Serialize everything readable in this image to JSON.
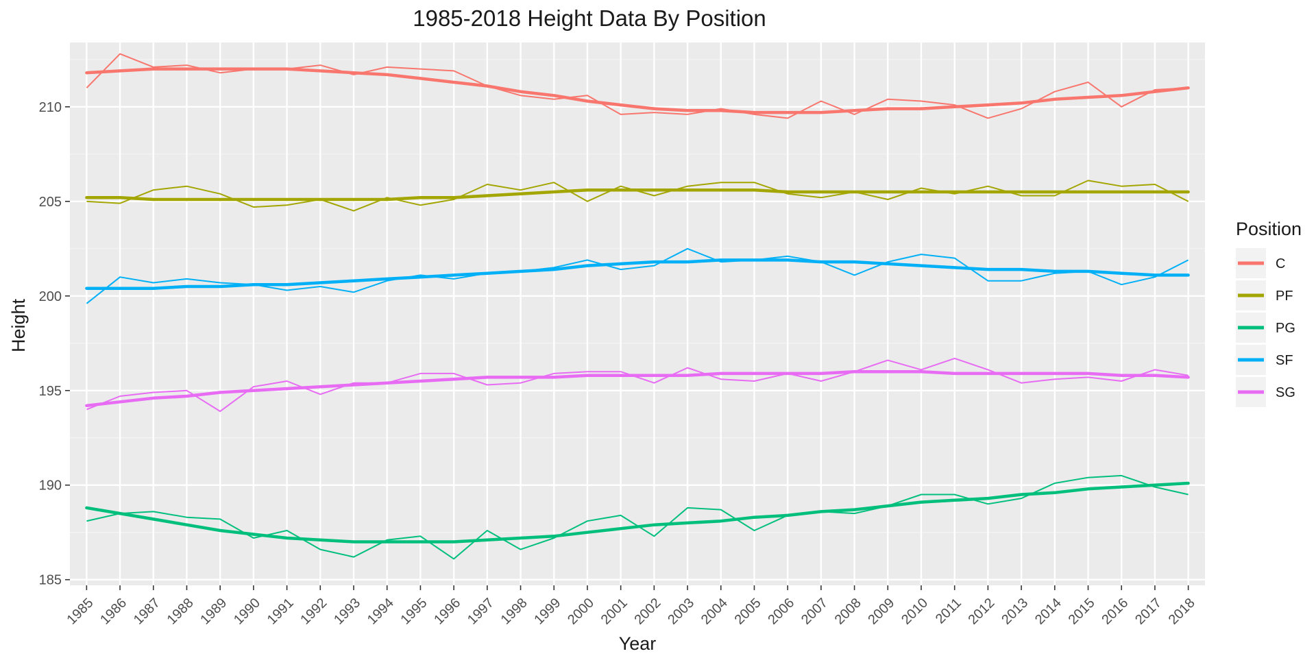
{
  "chart_data": {
    "type": "line",
    "title": "1985-2018 Height Data By Position",
    "xlabel": "Year",
    "ylabel": "Height",
    "xlim": [
      1984.5,
      2018.5
    ],
    "ylim": [
      184.7,
      213.4
    ],
    "x": [
      1985,
      1986,
      1987,
      1988,
      1989,
      1990,
      1991,
      1992,
      1993,
      1994,
      1995,
      1996,
      1997,
      1998,
      1999,
      2000,
      2001,
      2002,
      2003,
      2004,
      2005,
      2006,
      2007,
      2008,
      2009,
      2010,
      2011,
      2012,
      2013,
      2014,
      2015,
      2016,
      2017,
      2018
    ],
    "x_tick_labels": [
      "1985",
      "1986",
      "1987",
      "1988",
      "1989",
      "1990",
      "1991",
      "1992",
      "1993",
      "1994",
      "1995",
      "1996",
      "1997",
      "1998",
      "1999",
      "2000",
      "2001",
      "2002",
      "2003",
      "2004",
      "2005",
      "2006",
      "2007",
      "2008",
      "2009",
      "2010",
      "2011",
      "2012",
      "2013",
      "2014",
      "2015",
      "2016",
      "2017",
      "2018"
    ],
    "y_ticks": [
      185,
      190,
      195,
      200,
      205,
      210
    ],
    "y_tick_labels": [
      "185",
      "190",
      "195",
      "200",
      "205",
      "210"
    ],
    "grid": true,
    "legend": {
      "title": "Position",
      "placement": "right"
    },
    "series": [
      {
        "name": "C",
        "color": "#F8766D",
        "values": [
          211.0,
          212.8,
          212.1,
          212.2,
          211.8,
          212.0,
          212.0,
          212.2,
          211.7,
          212.1,
          212.0,
          211.9,
          211.1,
          210.6,
          210.4,
          210.6,
          209.6,
          209.7,
          209.6,
          209.9,
          209.6,
          209.4,
          210.3,
          209.6,
          210.4,
          210.3,
          210.1,
          209.4,
          209.9,
          210.8,
          211.3,
          210.0,
          210.9,
          211.0
        ],
        "trend": [
          211.8,
          211.9,
          212.0,
          212.0,
          212.0,
          212.0,
          212.0,
          211.9,
          211.8,
          211.7,
          211.5,
          211.3,
          211.1,
          210.8,
          210.6,
          210.3,
          210.1,
          209.9,
          209.8,
          209.8,
          209.7,
          209.7,
          209.7,
          209.8,
          209.9,
          209.9,
          210.0,
          210.1,
          210.2,
          210.4,
          210.5,
          210.6,
          210.8,
          211.0
        ]
      },
      {
        "name": "PF",
        "color": "#A3A500",
        "values": [
          205.0,
          204.9,
          205.6,
          205.8,
          205.4,
          204.7,
          204.8,
          205.1,
          204.5,
          205.2,
          204.8,
          205.1,
          205.9,
          205.6,
          206.0,
          205.0,
          205.8,
          205.3,
          205.8,
          206.0,
          206.0,
          205.4,
          205.2,
          205.5,
          205.1,
          205.7,
          205.4,
          205.8,
          205.3,
          205.3,
          206.1,
          205.8,
          205.9,
          205.0
        ],
        "trend": [
          205.2,
          205.2,
          205.1,
          205.1,
          205.1,
          205.1,
          205.1,
          205.1,
          205.1,
          205.1,
          205.2,
          205.2,
          205.3,
          205.4,
          205.5,
          205.6,
          205.6,
          205.6,
          205.6,
          205.6,
          205.6,
          205.5,
          205.5,
          205.5,
          205.5,
          205.5,
          205.5,
          205.5,
          205.5,
          205.5,
          205.5,
          205.5,
          205.5,
          205.5
        ]
      },
      {
        "name": "PG",
        "color": "#00BF7D",
        "values": [
          188.1,
          188.5,
          188.6,
          188.3,
          188.2,
          187.2,
          187.6,
          186.6,
          186.2,
          187.1,
          187.3,
          186.1,
          187.6,
          186.6,
          187.2,
          188.1,
          188.4,
          187.3,
          188.8,
          188.7,
          187.6,
          188.4,
          188.6,
          188.5,
          188.9,
          189.5,
          189.5,
          189.0,
          189.3,
          190.1,
          190.4,
          190.5,
          189.9,
          189.5
        ],
        "trend": [
          188.8,
          188.5,
          188.2,
          187.9,
          187.6,
          187.4,
          187.2,
          187.1,
          187.0,
          187.0,
          187.0,
          187.0,
          187.1,
          187.2,
          187.3,
          187.5,
          187.7,
          187.9,
          188.0,
          188.1,
          188.3,
          188.4,
          188.6,
          188.7,
          188.9,
          189.1,
          189.2,
          189.3,
          189.5,
          189.6,
          189.8,
          189.9,
          190.0,
          190.1
        ]
      },
      {
        "name": "SF",
        "color": "#00B0F6",
        "values": [
          199.6,
          201.0,
          200.7,
          200.9,
          200.7,
          200.6,
          200.3,
          200.5,
          200.2,
          200.8,
          201.1,
          200.9,
          201.2,
          201.3,
          201.5,
          201.9,
          201.4,
          201.6,
          202.5,
          201.8,
          201.9,
          202.1,
          201.8,
          201.1,
          201.8,
          202.2,
          202.0,
          200.8,
          200.8,
          201.2,
          201.3,
          200.6,
          201.0,
          201.9
        ],
        "trend": [
          200.4,
          200.4,
          200.4,
          200.5,
          200.5,
          200.6,
          200.6,
          200.7,
          200.8,
          200.9,
          201.0,
          201.1,
          201.2,
          201.3,
          201.4,
          201.6,
          201.7,
          201.8,
          201.8,
          201.9,
          201.9,
          201.9,
          201.8,
          201.8,
          201.7,
          201.6,
          201.5,
          201.4,
          201.4,
          201.3,
          201.3,
          201.2,
          201.1,
          201.1
        ]
      },
      {
        "name": "SG",
        "color": "#E76BF3",
        "values": [
          194.0,
          194.7,
          194.9,
          195.0,
          193.9,
          195.2,
          195.5,
          194.8,
          195.4,
          195.4,
          195.9,
          195.9,
          195.3,
          195.4,
          195.9,
          196.0,
          196.0,
          195.4,
          196.2,
          195.6,
          195.5,
          195.9,
          195.5,
          196.0,
          196.6,
          196.1,
          196.7,
          196.1,
          195.4,
          195.6,
          195.7,
          195.5,
          196.1,
          195.8
        ],
        "trend": [
          194.2,
          194.4,
          194.6,
          194.7,
          194.9,
          195.0,
          195.1,
          195.2,
          195.3,
          195.4,
          195.5,
          195.6,
          195.7,
          195.7,
          195.7,
          195.8,
          195.8,
          195.8,
          195.8,
          195.9,
          195.9,
          195.9,
          195.9,
          196.0,
          196.0,
          196.0,
          195.9,
          195.9,
          195.9,
          195.9,
          195.9,
          195.8,
          195.8,
          195.7
        ]
      }
    ]
  }
}
